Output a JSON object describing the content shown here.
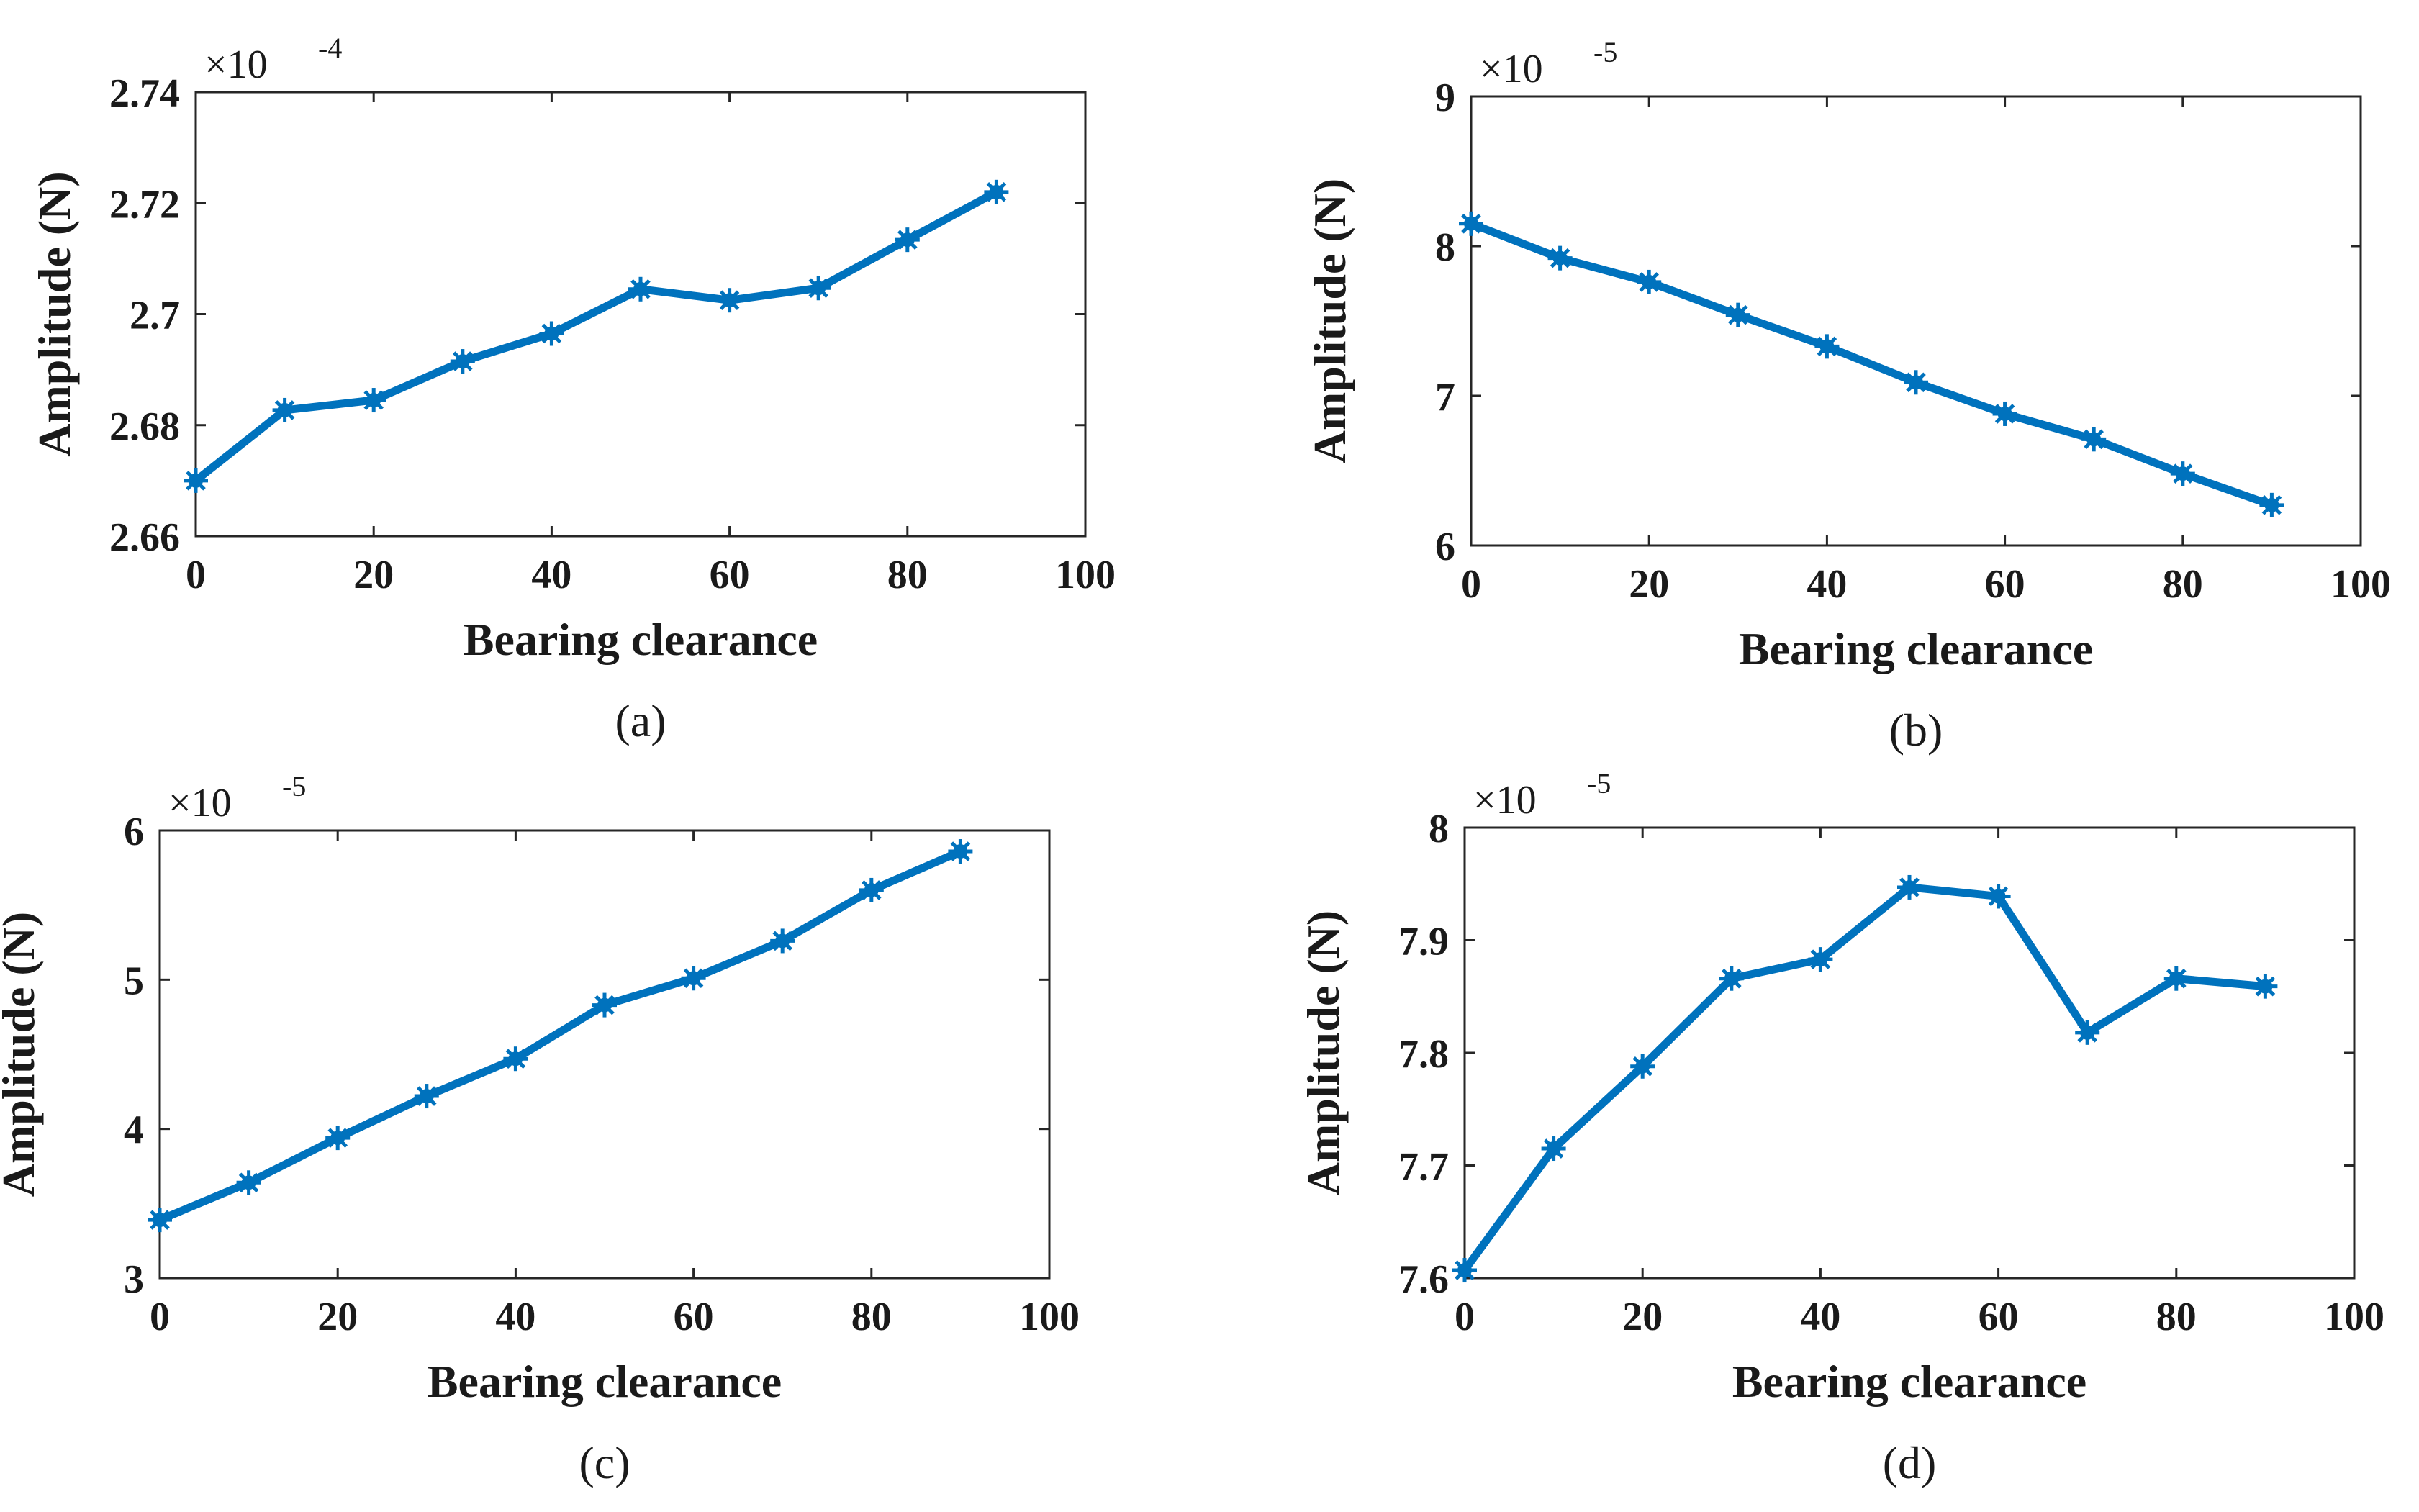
{
  "colors": {
    "series": "#0072BD",
    "axes": "#262626"
  },
  "chart_data": [
    {
      "type": "line",
      "caption": "(a)",
      "xlabel": "Bearing clearance",
      "ylabel": "Amplitude (N)",
      "multiplier": "×10",
      "exponent": "-4",
      "xlim": [
        0,
        100
      ],
      "ylim": [
        2.66,
        2.74
      ],
      "xticks": [
        0,
        20,
        40,
        60,
        80,
        100
      ],
      "xtick_labels": [
        "0",
        "20",
        "40",
        "60",
        "80",
        "100"
      ],
      "yticks": [
        2.66,
        2.68,
        2.7,
        2.72,
        2.74
      ],
      "ytick_labels": [
        "2.66",
        "2.68",
        "2.7",
        "2.72",
        "2.74"
      ],
      "x": [
        0,
        10,
        20,
        30,
        40,
        50,
        60,
        70,
        80,
        90
      ],
      "y": [
        2.67,
        2.6827,
        2.6845,
        2.6915,
        2.6965,
        2.7045,
        2.7025,
        2.7047,
        2.7134,
        2.722
      ],
      "grid": false,
      "marker": "asterisk"
    },
    {
      "type": "line",
      "caption": "(b)",
      "xlabel": "Bearing clearance",
      "ylabel": "Amplitude (N)",
      "multiplier": "×10",
      "exponent": "-5",
      "xlim": [
        0,
        100
      ],
      "ylim": [
        6,
        9
      ],
      "xticks": [
        0,
        20,
        40,
        60,
        80,
        100
      ],
      "xtick_labels": [
        "0",
        "20",
        "40",
        "60",
        "80",
        "100"
      ],
      "yticks": [
        6,
        7,
        8,
        9
      ],
      "ytick_labels": [
        "6",
        "7",
        "8",
        "9"
      ],
      "x": [
        0,
        10,
        20,
        30,
        40,
        50,
        60,
        70,
        80,
        90
      ],
      "y": [
        8.15,
        7.92,
        7.76,
        7.54,
        7.33,
        7.09,
        6.88,
        6.71,
        6.48,
        6.27
      ],
      "grid": false,
      "marker": "asterisk"
    },
    {
      "type": "line",
      "caption": "(c)",
      "xlabel": "Bearing clearance",
      "ylabel": "Amplitude (N)",
      "multiplier": "×10",
      "exponent": "-5",
      "xlim": [
        0,
        100
      ],
      "ylim": [
        3,
        6
      ],
      "xticks": [
        0,
        20,
        40,
        60,
        80,
        100
      ],
      "xtick_labels": [
        "0",
        "20",
        "40",
        "60",
        "80",
        "100"
      ],
      "yticks": [
        3,
        4,
        5,
        6
      ],
      "ytick_labels": [
        "3",
        "4",
        "5",
        "6"
      ],
      "x": [
        0,
        10,
        20,
        30,
        40,
        50,
        60,
        70,
        80,
        90
      ],
      "y": [
        3.39,
        3.64,
        3.94,
        4.22,
        4.47,
        4.83,
        5.01,
        5.26,
        5.6,
        5.86
      ],
      "grid": false,
      "marker": "asterisk"
    },
    {
      "type": "line",
      "caption": "(d)",
      "xlabel": "Bearing clearance",
      "ylabel": "Amplitude (N)",
      "multiplier": "×10",
      "exponent": "-5",
      "xlim": [
        0,
        100
      ],
      "ylim": [
        7.6,
        8.0
      ],
      "xticks": [
        0,
        20,
        40,
        60,
        80,
        100
      ],
      "xtick_labels": [
        "0",
        "20",
        "40",
        "60",
        "80",
        "100"
      ],
      "yticks": [
        7.6,
        7.7,
        7.8,
        7.9,
        8.0
      ],
      "ytick_labels": [
        "7.6",
        "7.7",
        "7.8",
        "7.9",
        "8"
      ],
      "x": [
        0,
        10,
        20,
        30,
        40,
        50,
        60,
        70,
        80,
        90
      ],
      "y": [
        7.607,
        7.715,
        7.788,
        7.866,
        7.883,
        7.947,
        7.939,
        7.818,
        7.866,
        7.859
      ],
      "grid": false,
      "marker": "asterisk"
    }
  ]
}
